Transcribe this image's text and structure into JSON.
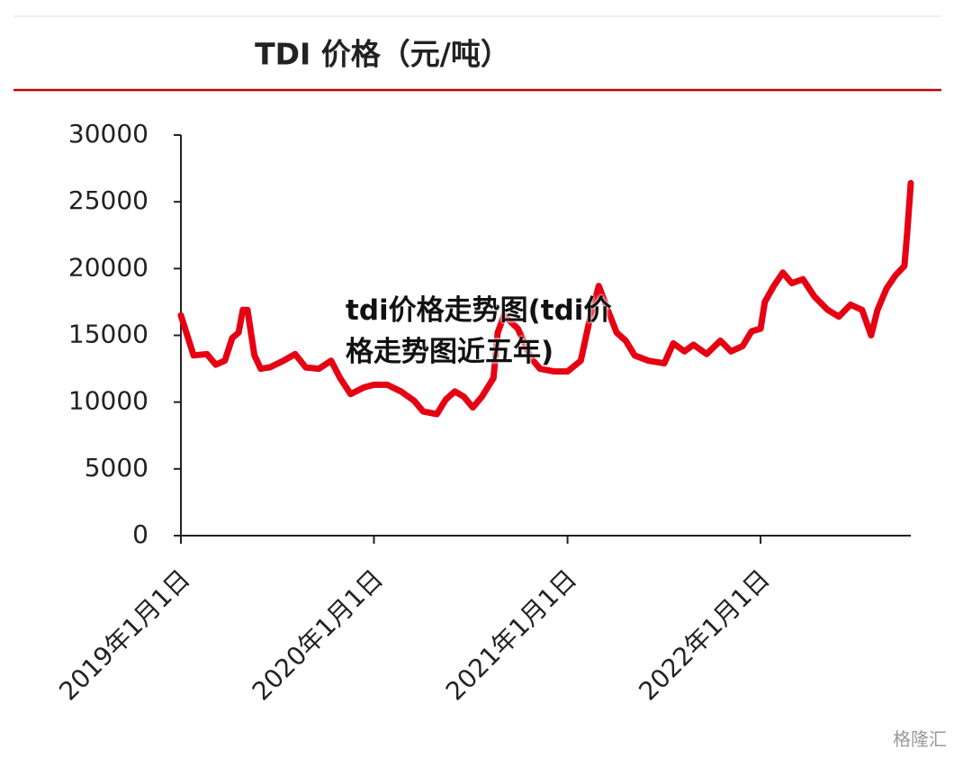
{
  "chart_data": {
    "type": "line",
    "title": "TDI 价格（元/吨）",
    "x": [
      "2019-01-01",
      "2019-01-25",
      "2019-02-19",
      "2019-03-08",
      "2019-03-25",
      "2019-04-08",
      "2019-04-20",
      "2019-04-28",
      "2019-05-07",
      "2019-05-20",
      "2019-06-01",
      "2019-06-18",
      "2019-07-14",
      "2019-08-05",
      "2019-08-25",
      "2019-09-19",
      "2019-10-12",
      "2019-10-29",
      "2019-11-18",
      "2019-12-13",
      "2020-01-01",
      "2020-01-26",
      "2020-02-21",
      "2020-03-17",
      "2020-04-03",
      "2020-04-29",
      "2020-05-16",
      "2020-06-02",
      "2020-06-19",
      "2020-07-06",
      "2020-07-23",
      "2020-08-14",
      "2020-08-22",
      "2020-09-03",
      "2020-09-29",
      "2020-10-24",
      "2020-11-10",
      "2020-12-06",
      "2021-01-01",
      "2021-01-26",
      "2021-02-12",
      "2021-03-01",
      "2021-03-18",
      "2021-04-04",
      "2021-04-21",
      "2021-05-08",
      "2021-06-03",
      "2021-07-03",
      "2021-07-20",
      "2021-08-10",
      "2021-08-27",
      "2021-09-21",
      "2021-10-17",
      "2021-11-06",
      "2021-11-28",
      "2021-12-15",
      "2022-01-01",
      "2022-01-09",
      "2022-01-26",
      "2022-02-12",
      "2022-03-01",
      "2022-03-22",
      "2022-04-13",
      "2022-05-08",
      "2022-05-29",
      "2022-06-20",
      "2022-07-12",
      "2022-07-29",
      "2022-08-10",
      "2022-08-27",
      "2022-09-13",
      "2022-09-30",
      "2022-10-05",
      "2022-10-12"
    ],
    "series": [
      {
        "name": "TDI",
        "color": "#e60012",
        "values": [
          16500,
          13500,
          13600,
          12800,
          13100,
          14800,
          15200,
          16900,
          16900,
          13500,
          12500,
          12600,
          13100,
          13600,
          12600,
          12500,
          13100,
          11800,
          10600,
          11100,
          11300,
          11300,
          10800,
          10100,
          9300,
          9100,
          10200,
          10800,
          10400,
          9600,
          10400,
          11800,
          15200,
          16500,
          15500,
          13300,
          12500,
          12300,
          12300,
          13100,
          16200,
          18700,
          16900,
          15200,
          14600,
          13500,
          13100,
          12900,
          14400,
          13800,
          14300,
          13600,
          14600,
          13800,
          14200,
          15300,
          15500,
          17500,
          18700,
          19700,
          18900,
          19200,
          17900,
          16900,
          16400,
          17300,
          16900,
          15000,
          16900,
          18500,
          19500,
          20200,
          22600,
          26400
        ]
      }
    ],
    "xlim": [
      "2019-01-01",
      "2022-10-12"
    ],
    "xticks": [
      {
        "value": "2019-01-01",
        "label": "2019年1月1日"
      },
      {
        "value": "2020-01-01",
        "label": "2020年1月1日"
      },
      {
        "value": "2021-01-01",
        "label": "2021年1月1日"
      },
      {
        "value": "2022-01-01",
        "label": "2022年1月1日"
      }
    ],
    "ylim": [
      0,
      30000
    ],
    "yticks": [
      0,
      5000,
      10000,
      15000,
      20000,
      25000,
      30000
    ],
    "grid": false
  },
  "overlay_text": "tdi价格走势图(tdi价格走势图近五年)",
  "watermark": "格隆汇"
}
